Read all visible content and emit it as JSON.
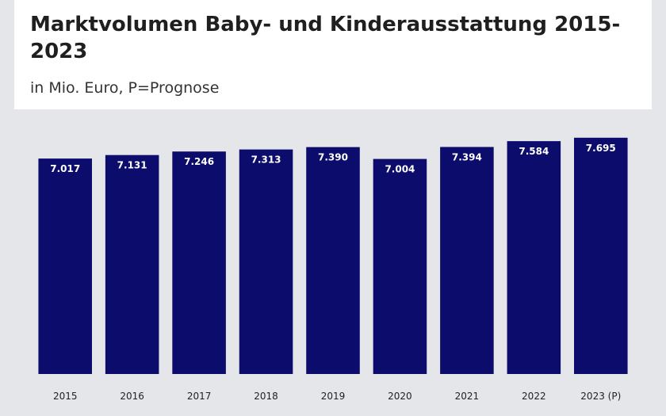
{
  "chart_data": {
    "type": "bar",
    "title": "Marktvolumen Baby- und Kinderausstattung 2015-2023",
    "subtitle": "in Mio. Euro, P=Prognose",
    "categories": [
      "2015",
      "2016",
      "2017",
      "2018",
      "2019",
      "2020",
      "2021",
      "2022",
      "2023 (P)"
    ],
    "values": [
      7017,
      7131,
      7246,
      7313,
      7390,
      7004,
      7394,
      7584,
      7695
    ],
    "value_labels": [
      "7.017",
      "7.131",
      "7.246",
      "7.313",
      "7.390",
      "7.004",
      "7.394",
      "7.584",
      "7.695"
    ],
    "color": "#0c0c6c",
    "ylim": [
      0,
      8000
    ]
  }
}
